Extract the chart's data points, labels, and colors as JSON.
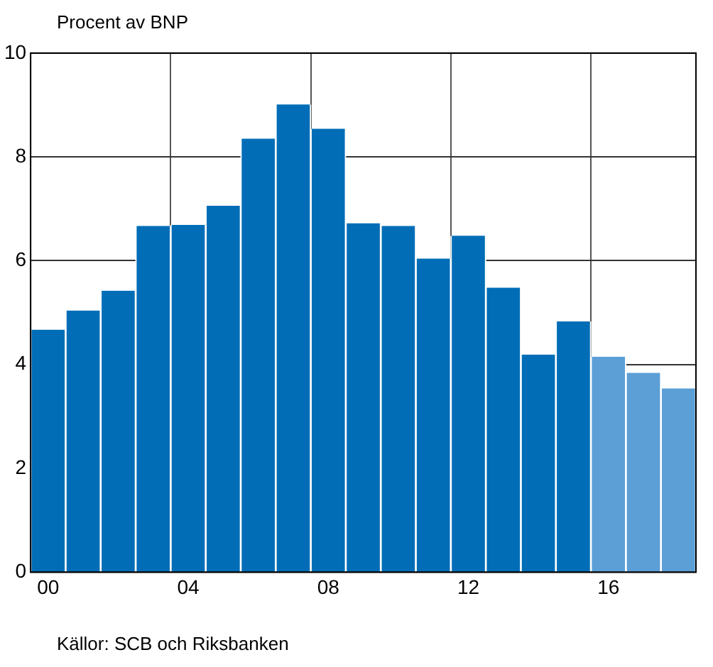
{
  "chart_data": {
    "type": "bar",
    "ylabel": "Procent av BNP",
    "categories": [
      "00",
      null,
      null,
      null,
      "04",
      null,
      null,
      null,
      "08",
      null,
      null,
      null,
      "12",
      null,
      null,
      null,
      "16",
      null,
      null
    ],
    "values": [
      4.67,
      5.04,
      5.42,
      6.67,
      6.69,
      7.06,
      8.35,
      9.01,
      8.54,
      6.72,
      6.67,
      6.04,
      6.48,
      5.48,
      4.19,
      4.83,
      4.15,
      3.84,
      3.54
    ],
    "colors": [
      "#006db6",
      "#006db6",
      "#006db6",
      "#006db6",
      "#006db6",
      "#006db6",
      "#006db6",
      "#006db6",
      "#006db6",
      "#006db6",
      "#006db6",
      "#006db6",
      "#006db6",
      "#006db6",
      "#006db6",
      "#006db6",
      "#5b9fd6",
      "#5b9fd6",
      "#5b9fd6"
    ],
    "ylim": [
      0,
      10
    ],
    "yticks": [
      0,
      2,
      4,
      6,
      8,
      10
    ],
    "grid": true,
    "legend": false,
    "annotations": [
      "Källor: SCB och Riksbanken"
    ]
  }
}
